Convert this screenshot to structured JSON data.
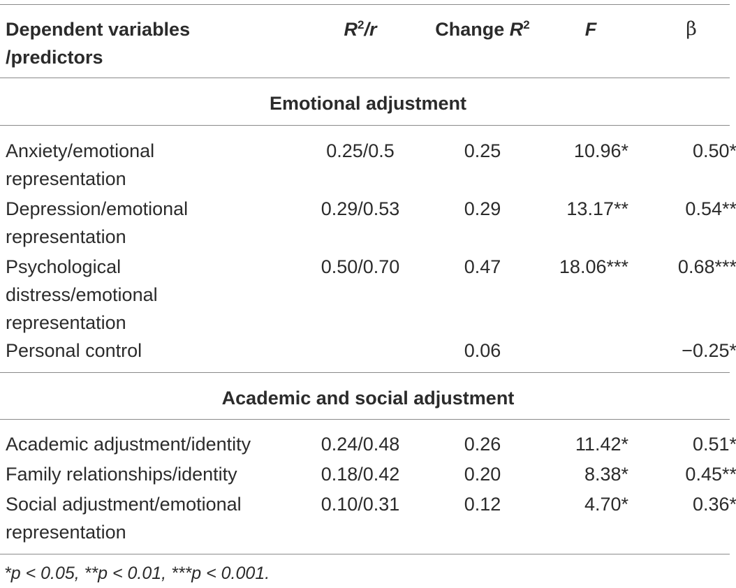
{
  "header": {
    "col1_line1": "Dependent variables",
    "col1_line2": "/predictors",
    "r2r_base": "R",
    "r2r_exp": "2",
    "r2r_tail": "/r",
    "change_prefix": "Change ",
    "change_base": "R",
    "change_exp": "2",
    "f": "F",
    "beta": "β"
  },
  "sections": [
    {
      "title": "Emotional adjustment",
      "rows": [
        {
          "lines": [
            "Anxiety/emotional",
            "representation"
          ],
          "r2r": "0.25/0.5",
          "change": "0.25",
          "f": "10.96*",
          "beta": "0.50*"
        },
        {
          "lines": [
            "Depression/emotional",
            "representation"
          ],
          "r2r": "0.29/0.53",
          "change": "0.29",
          "f": "13.17**",
          "beta": "0.54**"
        },
        {
          "lines": [
            "Psychological",
            "distress/emotional",
            "representation"
          ],
          "r2r": "0.50/0.70",
          "change": "0.47",
          "f": "18.06***",
          "beta": "0.68***"
        },
        {
          "lines": [
            "Personal control"
          ],
          "r2r": "",
          "change": "0.06",
          "f": "",
          "beta": "−0.25*"
        }
      ]
    },
    {
      "title": "Academic and social adjustment",
      "rows": [
        {
          "lines": [
            "Academic adjustment/identity"
          ],
          "r2r": "0.24/0.48",
          "change": "0.26",
          "f": "11.42*",
          "beta": "0.51*"
        },
        {
          "lines": [
            "Family relationships/identity"
          ],
          "r2r": "0.18/0.42",
          "change": "0.20",
          "f": "8.38*",
          "beta": "0.45**"
        },
        {
          "lines": [
            "Social adjustment/emotional",
            "representation"
          ],
          "r2r": "0.10/0.31",
          "change": "0.12",
          "f": "4.70*",
          "beta": "0.36*"
        }
      ]
    }
  ],
  "footnote": "*p < 0.05, **p < 0.01, ***p < 0.001."
}
